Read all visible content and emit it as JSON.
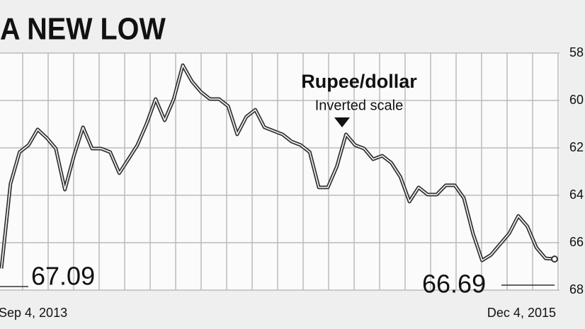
{
  "chart_data": {
    "type": "line",
    "title": "A NEW LOW",
    "annotations": [
      "Rupee/dollar",
      "Inverted scale",
      "67.09",
      "66.69"
    ],
    "categories": [
      "Sep 4, 2013",
      null,
      null,
      null,
      null,
      null,
      null,
      null,
      null,
      null,
      null,
      null,
      null,
      null,
      null,
      null,
      null,
      null,
      null,
      null,
      null,
      null,
      null,
      null,
      null,
      null,
      null,
      null,
      null,
      null,
      null,
      null,
      null,
      null,
      null,
      null,
      null,
      null,
      null,
      null,
      null,
      null,
      null,
      null,
      null,
      null,
      null,
      null,
      null,
      null,
      null,
      null,
      null,
      null,
      null,
      null,
      null,
      null,
      null,
      null,
      null,
      "Dec 4, 2015"
    ],
    "series": [
      {
        "name": "Rupee/dollar",
        "color": "#333333",
        "values": [
          67.09,
          63.52,
          62.18,
          61.88,
          61.22,
          61.58,
          62.03,
          63.76,
          62.33,
          61.13,
          62.03,
          62.03,
          62.18,
          63.07,
          62.48,
          61.88,
          60.99,
          59.94,
          60.84,
          59.94,
          58.51,
          59.19,
          59.64,
          59.94,
          59.94,
          60.24,
          61.43,
          60.69,
          60.39,
          61.13,
          61.28,
          61.43,
          61.73,
          61.88,
          62.18,
          63.67,
          63.67,
          62.78,
          61.43,
          61.88,
          62.03,
          62.48,
          62.33,
          62.63,
          63.22,
          64.27,
          63.67,
          63.97,
          63.97,
          63.58,
          63.58,
          64.12,
          65.61,
          66.75,
          66.51,
          66.06,
          65.61,
          64.87,
          65.31,
          66.21,
          66.66,
          66.69
        ]
      }
    ],
    "ylim": [
      58,
      68
    ],
    "y_inverted": true,
    "yticks": [
      58,
      60,
      62,
      64,
      66,
      68
    ],
    "grid": true
  }
}
